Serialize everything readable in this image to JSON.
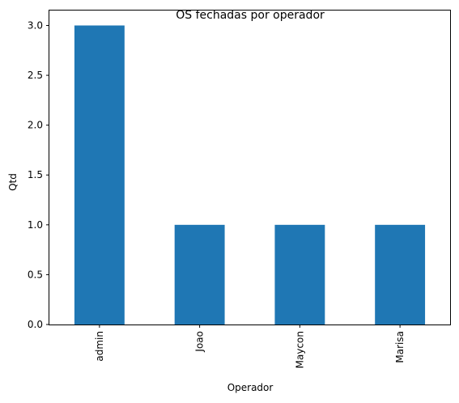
{
  "chart_data": {
    "type": "bar",
    "title": "OS fechadas por operador",
    "xlabel": "Operador",
    "ylabel": "Qtd",
    "categories": [
      "admin",
      "Joao",
      "Maycon",
      "Marisa"
    ],
    "values": [
      3,
      1,
      1,
      1
    ],
    "ylim": [
      0,
      3.15
    ],
    "yticks": [
      0.0,
      0.5,
      1.0,
      1.5,
      2.0,
      2.5,
      3.0
    ],
    "ytick_labels": [
      "0.0",
      "0.5",
      "1.0",
      "1.5",
      "2.0",
      "2.5",
      "3.0"
    ],
    "bar_color": "#1f77b4",
    "grid": false,
    "legend": "none",
    "xtick_rotation": "vertical"
  }
}
